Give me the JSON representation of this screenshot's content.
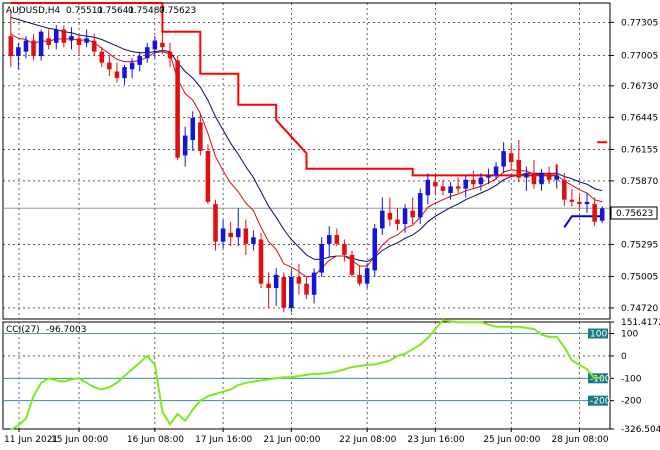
{
  "header": {
    "symbol": "AUDUSD,H4",
    "open": "0.75511",
    "high": "0.75641",
    "low": "0.75487",
    "close": "0.75623"
  },
  "indicator": {
    "name": "CCI(27)",
    "value": "-96.7003"
  },
  "colors": {
    "bull": "#1414d8",
    "bear": "#e01010",
    "ema_slow": "#0a0a5a",
    "ema_fast": "#cc1010",
    "stop": "#ff0000",
    "blue_level": "#0000ee",
    "cci": "#7fe81e",
    "level_line": "#1a7a8a",
    "grid": "#000000"
  },
  "chart_data": [
    {
      "type": "candlestick",
      "title": "",
      "x_labels": [
        "11 Jun 2021",
        "15 Jun 00:00",
        "16 Jun 08:00",
        "17 Jun 16:00",
        "21 Jun 00:00",
        "22 Jun 08:00",
        "23 Jun 16:00",
        "25 Jun 00:00",
        "28 Jun 08:00"
      ],
      "y_ticks": [
        "0.77305",
        "0.77005",
        "0.76730",
        "0.76445",
        "0.76155",
        "0.75870",
        "0.75295",
        "0.75005",
        "0.74720"
      ],
      "current_price_label": "0.75623",
      "ylim": [
        0.7462,
        0.7748
      ],
      "grid": true,
      "candles": [
        {
          "o": 0.7718,
          "h": 0.774,
          "l": 0.769,
          "c": 0.77
        },
        {
          "o": 0.77,
          "h": 0.7712,
          "l": 0.7688,
          "c": 0.7708
        },
        {
          "o": 0.7704,
          "h": 0.7718,
          "l": 0.7698,
          "c": 0.7714
        },
        {
          "o": 0.7714,
          "h": 0.772,
          "l": 0.7696,
          "c": 0.77
        },
        {
          "o": 0.77,
          "h": 0.7724,
          "l": 0.7696,
          "c": 0.7722
        },
        {
          "o": 0.7716,
          "h": 0.7724,
          "l": 0.7706,
          "c": 0.771
        },
        {
          "o": 0.7712,
          "h": 0.7728,
          "l": 0.7706,
          "c": 0.7724
        },
        {
          "o": 0.7724,
          "h": 0.7728,
          "l": 0.7708,
          "c": 0.7712
        },
        {
          "o": 0.7714,
          "h": 0.7726,
          "l": 0.7706,
          "c": 0.7718
        },
        {
          "o": 0.7716,
          "h": 0.772,
          "l": 0.7702,
          "c": 0.771
        },
        {
          "o": 0.7712,
          "h": 0.7724,
          "l": 0.7708,
          "c": 0.7716
        },
        {
          "o": 0.7714,
          "h": 0.772,
          "l": 0.77,
          "c": 0.7704
        },
        {
          "o": 0.7704,
          "h": 0.7708,
          "l": 0.769,
          "c": 0.7694
        },
        {
          "o": 0.7694,
          "h": 0.77,
          "l": 0.7682,
          "c": 0.7688
        },
        {
          "o": 0.7686,
          "h": 0.7694,
          "l": 0.7676,
          "c": 0.768
        },
        {
          "o": 0.768,
          "h": 0.7692,
          "l": 0.7674,
          "c": 0.769
        },
        {
          "o": 0.7688,
          "h": 0.7698,
          "l": 0.768,
          "c": 0.7694
        },
        {
          "o": 0.7692,
          "h": 0.7704,
          "l": 0.7686,
          "c": 0.77
        },
        {
          "o": 0.7698,
          "h": 0.7712,
          "l": 0.7694,
          "c": 0.7708
        },
        {
          "o": 0.7706,
          "h": 0.7718,
          "l": 0.7698,
          "c": 0.7714
        },
        {
          "o": 0.7712,
          "h": 0.7722,
          "l": 0.7702,
          "c": 0.7708
        },
        {
          "o": 0.7704,
          "h": 0.7712,
          "l": 0.769,
          "c": 0.7698
        },
        {
          "o": 0.7696,
          "h": 0.77,
          "l": 0.7606,
          "c": 0.7608
        },
        {
          "o": 0.761,
          "h": 0.7636,
          "l": 0.76,
          "c": 0.7628
        },
        {
          "o": 0.7624,
          "h": 0.765,
          "l": 0.7614,
          "c": 0.7644
        },
        {
          "o": 0.764,
          "h": 0.7648,
          "l": 0.761,
          "c": 0.7614
        },
        {
          "o": 0.7614,
          "h": 0.762,
          "l": 0.7566,
          "c": 0.7568
        },
        {
          "o": 0.7566,
          "h": 0.757,
          "l": 0.7524,
          "c": 0.7532
        },
        {
          "o": 0.7532,
          "h": 0.7552,
          "l": 0.7526,
          "c": 0.7544
        },
        {
          "o": 0.754,
          "h": 0.755,
          "l": 0.7528,
          "c": 0.7536
        },
        {
          "o": 0.7536,
          "h": 0.7562,
          "l": 0.7528,
          "c": 0.7544
        },
        {
          "o": 0.7544,
          "h": 0.7552,
          "l": 0.752,
          "c": 0.753
        },
        {
          "o": 0.753,
          "h": 0.7542,
          "l": 0.7524,
          "c": 0.7536
        },
        {
          "o": 0.7534,
          "h": 0.754,
          "l": 0.749,
          "c": 0.7494
        },
        {
          "o": 0.7494,
          "h": 0.7504,
          "l": 0.7472,
          "c": 0.749
        },
        {
          "o": 0.749,
          "h": 0.7508,
          "l": 0.7474,
          "c": 0.7502
        },
        {
          "o": 0.75,
          "h": 0.7504,
          "l": 0.7468,
          "c": 0.7472
        },
        {
          "o": 0.7472,
          "h": 0.7506,
          "l": 0.7468,
          "c": 0.75
        },
        {
          "o": 0.75,
          "h": 0.7512,
          "l": 0.7484,
          "c": 0.7494
        },
        {
          "o": 0.7494,
          "h": 0.75,
          "l": 0.748,
          "c": 0.7484
        },
        {
          "o": 0.7484,
          "h": 0.7508,
          "l": 0.7476,
          "c": 0.7504
        },
        {
          "o": 0.7504,
          "h": 0.7536,
          "l": 0.75,
          "c": 0.753
        },
        {
          "o": 0.753,
          "h": 0.7546,
          "l": 0.7518,
          "c": 0.7538
        },
        {
          "o": 0.7538,
          "h": 0.7544,
          "l": 0.7528,
          "c": 0.753
        },
        {
          "o": 0.753,
          "h": 0.7534,
          "l": 0.7514,
          "c": 0.752
        },
        {
          "o": 0.752,
          "h": 0.7524,
          "l": 0.75,
          "c": 0.7502
        },
        {
          "o": 0.7502,
          "h": 0.751,
          "l": 0.7492,
          "c": 0.7494
        },
        {
          "o": 0.7494,
          "h": 0.7512,
          "l": 0.749,
          "c": 0.7508
        },
        {
          "o": 0.7506,
          "h": 0.7548,
          "l": 0.75,
          "c": 0.7544
        },
        {
          "o": 0.7544,
          "h": 0.7572,
          "l": 0.7538,
          "c": 0.756
        },
        {
          "o": 0.7558,
          "h": 0.7572,
          "l": 0.7546,
          "c": 0.7552
        },
        {
          "o": 0.7552,
          "h": 0.7562,
          "l": 0.7542,
          "c": 0.7548
        },
        {
          "o": 0.7548,
          "h": 0.7566,
          "l": 0.754,
          "c": 0.7562
        },
        {
          "o": 0.756,
          "h": 0.7572,
          "l": 0.7548,
          "c": 0.7554
        },
        {
          "o": 0.7554,
          "h": 0.758,
          "l": 0.7548,
          "c": 0.7576
        },
        {
          "o": 0.7574,
          "h": 0.7594,
          "l": 0.7566,
          "c": 0.7588
        },
        {
          "o": 0.7586,
          "h": 0.7592,
          "l": 0.7574,
          "c": 0.7582
        },
        {
          "o": 0.7582,
          "h": 0.7588,
          "l": 0.7574,
          "c": 0.7578
        },
        {
          "o": 0.7576,
          "h": 0.7586,
          "l": 0.757,
          "c": 0.7582
        },
        {
          "o": 0.7582,
          "h": 0.759,
          "l": 0.7576,
          "c": 0.758
        },
        {
          "o": 0.758,
          "h": 0.7592,
          "l": 0.7572,
          "c": 0.7588
        },
        {
          "o": 0.7588,
          "h": 0.7596,
          "l": 0.758,
          "c": 0.7584
        },
        {
          "o": 0.7584,
          "h": 0.7594,
          "l": 0.7578,
          "c": 0.759
        },
        {
          "o": 0.759,
          "h": 0.7598,
          "l": 0.7584,
          "c": 0.7592
        },
        {
          "o": 0.7592,
          "h": 0.7604,
          "l": 0.7588,
          "c": 0.76
        },
        {
          "o": 0.76,
          "h": 0.7622,
          "l": 0.7594,
          "c": 0.7614
        },
        {
          "o": 0.7612,
          "h": 0.762,
          "l": 0.7598,
          "c": 0.7604
        },
        {
          "o": 0.7606,
          "h": 0.7624,
          "l": 0.7586,
          "c": 0.759
        },
        {
          "o": 0.759,
          "h": 0.76,
          "l": 0.7578,
          "c": 0.7594
        },
        {
          "o": 0.7594,
          "h": 0.7606,
          "l": 0.758,
          "c": 0.7584
        },
        {
          "o": 0.7584,
          "h": 0.7598,
          "l": 0.7578,
          "c": 0.7594
        },
        {
          "o": 0.7594,
          "h": 0.76,
          "l": 0.7584,
          "c": 0.7588
        },
        {
          "o": 0.7588,
          "h": 0.7598,
          "l": 0.758,
          "c": 0.7592
        },
        {
          "o": 0.7588,
          "h": 0.7594,
          "l": 0.7564,
          "c": 0.757
        },
        {
          "o": 0.757,
          "h": 0.758,
          "l": 0.7564,
          "c": 0.7568
        },
        {
          "o": 0.7568,
          "h": 0.7574,
          "l": 0.756,
          "c": 0.7566
        },
        {
          "o": 0.7566,
          "h": 0.7576,
          "l": 0.7558,
          "c": 0.7568
        },
        {
          "o": 0.7566,
          "h": 0.7572,
          "l": 0.7546,
          "c": 0.755
        },
        {
          "o": 0.7551,
          "h": 0.7564,
          "l": 0.7549,
          "c": 0.7562
        }
      ],
      "ema_slow": [
        0.7735,
        0.7733,
        0.7731,
        0.7729,
        0.7727,
        0.7725,
        0.7724,
        0.7722,
        0.7721,
        0.7719,
        0.7718,
        0.7717,
        0.7715,
        0.7712,
        0.7709,
        0.7706,
        0.7704,
        0.7703,
        0.7703,
        0.7704,
        0.7705,
        0.7704,
        0.7694,
        0.7686,
        0.768,
        0.7672,
        0.766,
        0.7645,
        0.7633,
        0.7621,
        0.7611,
        0.76,
        0.759,
        0.7577,
        0.7564,
        0.7554,
        0.7543,
        0.7534,
        0.7527,
        0.752,
        0.7516,
        0.7516,
        0.7518,
        0.7519,
        0.7519,
        0.7517,
        0.7515,
        0.7514,
        0.7518,
        0.7524,
        0.7528,
        0.7531,
        0.7535,
        0.7538,
        0.7543,
        0.755,
        0.7555,
        0.7559,
        0.7563,
        0.7566,
        0.757,
        0.7573,
        0.7576,
        0.7579,
        0.7583,
        0.7588,
        0.7591,
        0.7592,
        0.7594,
        0.7594,
        0.7594,
        0.7594,
        0.7594,
        0.7591,
        0.7589,
        0.7586,
        0.7584,
        0.758,
        0.7578
      ],
      "ema_fast": [
        0.772,
        0.7716,
        0.7715,
        0.7711,
        0.7714,
        0.7713,
        0.7716,
        0.7715,
        0.7716,
        0.7714,
        0.7715,
        0.7712,
        0.7707,
        0.7702,
        0.7697,
        0.7695,
        0.7695,
        0.7696,
        0.7699,
        0.7703,
        0.7704,
        0.7702,
        0.7679,
        0.7666,
        0.766,
        0.7648,
        0.763,
        0.7609,
        0.7596,
        0.7585,
        0.7577,
        0.7567,
        0.756,
        0.7545,
        0.7532,
        0.7525,
        0.7512,
        0.7509,
        0.7505,
        0.75,
        0.7501,
        0.7508,
        0.7515,
        0.7519,
        0.7519,
        0.7515,
        0.751,
        0.751,
        0.7519,
        0.7529,
        0.7535,
        0.7538,
        0.7544,
        0.7547,
        0.7554,
        0.7563,
        0.7567,
        0.757,
        0.7573,
        0.7575,
        0.7578,
        0.758,
        0.7582,
        0.7585,
        0.7589,
        0.7595,
        0.7597,
        0.7596,
        0.7596,
        0.7593,
        0.7593,
        0.7592,
        0.7592,
        0.7587,
        0.7583,
        0.7579,
        0.7576,
        0.757,
        0.7568
      ],
      "stop_line": [
        [
          0,
          0.7748
        ],
        [
          5,
          0.7748
        ],
        [
          12,
          0.7748
        ],
        [
          20,
          0.7748
        ],
        [
          20,
          0.7722
        ],
        [
          25,
          0.7722
        ],
        [
          25,
          0.7684
        ],
        [
          30,
          0.7684
        ],
        [
          30,
          0.7656
        ],
        [
          35,
          0.7656
        ],
        [
          35,
          0.7642
        ],
        [
          39,
          0.7612
        ],
        [
          39,
          0.7598
        ],
        [
          53,
          0.7598
        ],
        [
          53,
          0.7592
        ],
        [
          72,
          0.7592
        ],
        [
          72,
          0.7602
        ]
      ],
      "stop_marker": {
        "x": 78,
        "y": 0.7622
      },
      "blue_level": [
        [
          73,
          0.7545
        ],
        [
          74,
          0.7555
        ],
        [
          78,
          0.7555
        ]
      ],
      "current_price_line": 0.75623
    },
    {
      "type": "line",
      "title": "",
      "y_ticks": [
        "151.4172",
        "100",
        "0",
        "-100",
        "-200",
        "-326.5048"
      ],
      "levels": [
        100,
        -100,
        -200
      ],
      "ylim": [
        -326.5,
        151.4
      ],
      "grid": true,
      "values": [
        -330,
        -310,
        -280,
        -180,
        -120,
        -100,
        -110,
        -115,
        -105,
        -100,
        -120,
        -140,
        -150,
        -140,
        -120,
        -90,
        -60,
        -30,
        0,
        -40,
        -250,
        -305,
        -260,
        -290,
        -240,
        -200,
        -180,
        -170,
        -160,
        -150,
        -130,
        -120,
        -115,
        -110,
        -105,
        -100,
        -95,
        -95,
        -90,
        -85,
        -80,
        -80,
        -75,
        -70,
        -60,
        -50,
        -45,
        -40,
        -38,
        -30,
        -20,
        0,
        10,
        30,
        50,
        80,
        120,
        160,
        155,
        150,
        150,
        150,
        150,
        140,
        130,
        130,
        130,
        130,
        125,
        120,
        95,
        85,
        85,
        40,
        -20,
        -40,
        -60,
        -100,
        -96.7
      ]
    }
  ]
}
